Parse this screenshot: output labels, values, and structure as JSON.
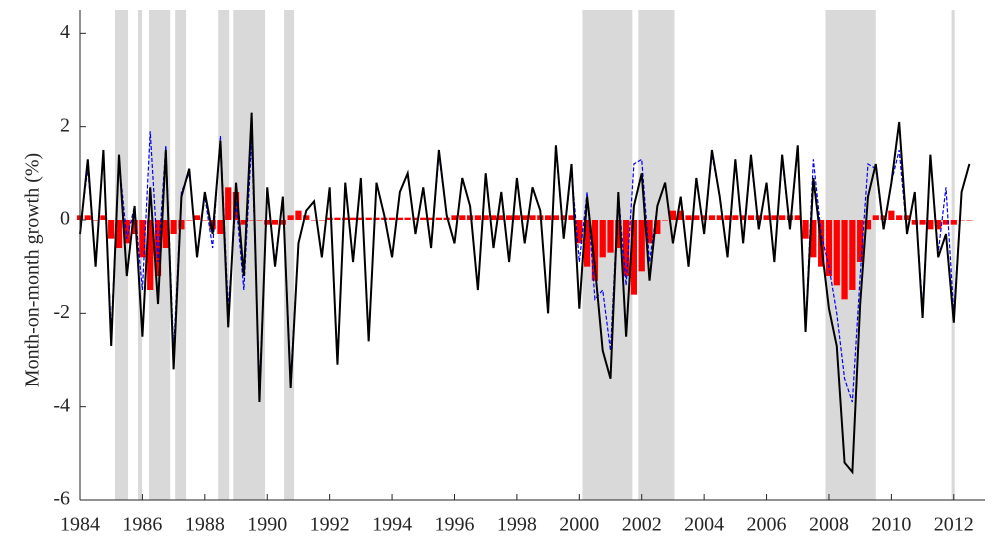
{
  "chart_data": {
    "type": "line",
    "ylabel": "Month-on-month growth (%)",
    "xlim": [
      1984,
      2013
    ],
    "ylim": [
      -6,
      4.5
    ],
    "xticks": [
      1984,
      1986,
      1988,
      1990,
      1992,
      1994,
      1996,
      1998,
      2000,
      2002,
      2004,
      2006,
      2008,
      2010,
      2012
    ],
    "yticks": [
      -6,
      -4,
      -2,
      0,
      2,
      4
    ],
    "shaded_periods": [
      [
        1985.12,
        1985.54
      ],
      [
        1985.86,
        1985.99
      ],
      [
        1986.21,
        1986.89
      ],
      [
        1987.05,
        1987.4
      ],
      [
        1988.43,
        1988.78
      ],
      [
        1988.91,
        1989.93
      ],
      [
        1990.54,
        1990.86
      ],
      [
        2000.1,
        2001.7
      ],
      [
        2001.89,
        2003.05
      ],
      [
        2007.89,
        2009.5
      ],
      [
        2011.93,
        2012.03
      ]
    ],
    "shade_color": "#d9d9d9",
    "x": [
      1984,
      1984.25,
      1984.5,
      1984.75,
      1985,
      1985.25,
      1985.5,
      1985.75,
      1986,
      1986.25,
      1986.5,
      1986.75,
      1987,
      1987.25,
      1987.5,
      1987.75,
      1988,
      1988.25,
      1988.5,
      1988.75,
      1989,
      1989.25,
      1989.5,
      1989.75,
      1990,
      1990.25,
      1990.5,
      1990.75,
      1991,
      1991.25,
      1991.5,
      1991.75,
      1992,
      1992.25,
      1992.5,
      1992.75,
      1993,
      1993.25,
      1993.5,
      1993.75,
      1994,
      1994.25,
      1994.5,
      1994.75,
      1995,
      1995.25,
      1995.5,
      1995.75,
      1996,
      1996.25,
      1996.5,
      1996.75,
      1997,
      1997.25,
      1997.5,
      1997.75,
      1998,
      1998.25,
      1998.5,
      1998.75,
      1999,
      1999.25,
      1999.5,
      1999.75,
      2000,
      2000.25,
      2000.5,
      2000.75,
      2001,
      2001.25,
      2001.5,
      2001.75,
      2002,
      2002.25,
      2002.5,
      2002.75,
      2003,
      2003.25,
      2003.5,
      2003.75,
      2004,
      2004.25,
      2004.5,
      2004.75,
      2005,
      2005.25,
      2005.5,
      2005.75,
      2006,
      2006.25,
      2006.5,
      2006.75,
      2007,
      2007.25,
      2007.5,
      2007.75,
      2008,
      2008.25,
      2008.5,
      2008.75,
      2009,
      2009.25,
      2009.5,
      2009.75,
      2010,
      2010.25,
      2010.5,
      2010.75,
      2011,
      2011.25,
      2011.5,
      2011.75,
      2012,
      2012.25,
      2012.5
    ],
    "bars": {
      "color": "#ff0000",
      "values": [
        0.1,
        0.1,
        0,
        0.1,
        -0.4,
        -0.6,
        -0.5,
        -0.3,
        -0.8,
        -1.5,
        -1.2,
        -0.6,
        -0.3,
        -0.2,
        0,
        0.1,
        0,
        -0.2,
        -0.3,
        0.7,
        0.6,
        -0.1,
        0,
        0,
        -0.1,
        -0.1,
        -0.1,
        0.1,
        0.2,
        0.1,
        0,
        0,
        0.05,
        0.05,
        0.05,
        0.05,
        0.05,
        0.05,
        0.05,
        0.05,
        0.05,
        0.05,
        0.05,
        0.05,
        0.05,
        0.05,
        0.05,
        0.05,
        0.1,
        0.1,
        0.1,
        0.1,
        0.1,
        0.1,
        0.1,
        0.1,
        0.1,
        0.1,
        0.1,
        0.1,
        0.1,
        0.1,
        0.1,
        0.1,
        -0.5,
        -1.0,
        -1.3,
        -0.8,
        -0.7,
        -0.6,
        -1.2,
        -1.6,
        -1.1,
        -0.5,
        -0.3,
        0,
        0.2,
        0.2,
        0.1,
        0.1,
        0.1,
        0.1,
        0.1,
        0.1,
        0.1,
        0.1,
        0.1,
        0.1,
        0.1,
        0.1,
        0.1,
        0.1,
        0.1,
        -0.4,
        -0.8,
        -1.0,
        -1.2,
        -1.4,
        -1.7,
        -1.5,
        -0.9,
        -0.2,
        0.1,
        0.1,
        0.2,
        0.1,
        0.1,
        -0.1,
        -0.1,
        -0.2,
        -0.2,
        -0.1,
        -0.1,
        0,
        0
      ]
    },
    "series": [
      {
        "color": "#0000ff",
        "dash": true,
        "values": [
          -0.2,
          1.1,
          -0.9,
          1.4,
          -2.4,
          1.3,
          -0.4,
          0.3,
          -1.5,
          1.9,
          -0.9,
          1.6,
          -2.8,
          0.6,
          1.0,
          -0.7,
          0.5,
          -0.6,
          1.8,
          -1.9,
          0.4,
          -1.5,
          1.7,
          -3.6,
          0.6,
          -0.9,
          0.5,
          -3.4,
          -0.5,
          0.2,
          0.4,
          -0.8,
          0.7,
          -3.0,
          0.8,
          -0.9,
          0.9,
          -2.5,
          0.8,
          0.1,
          -0.8,
          0.6,
          1.0,
          -0.3,
          0.7,
          -0.6,
          1.4,
          0.1,
          -0.5,
          0.9,
          0.3,
          -1.5,
          1.0,
          -0.6,
          0.6,
          -0.9,
          0.9,
          -0.5,
          0.7,
          0.2,
          -2.0,
          1.5,
          -0.4,
          1.1,
          -0.9,
          0.6,
          -1.7,
          -1.5,
          -2.8,
          0.6,
          -1.4,
          1.2,
          1.3,
          -0.9,
          0.3,
          0.8,
          -0.5,
          0.5,
          -1.0,
          0.9,
          -0.3,
          1.4,
          0.5,
          -0.8,
          1.3,
          -0.5,
          1.3,
          -0.2,
          0.8,
          -0.9,
          1.3,
          -0.2,
          1.5,
          -2.3,
          1.3,
          -0.3,
          -1.0,
          -2.0,
          -3.4,
          -3.9,
          -1.2,
          1.2,
          1.1,
          -0.2,
          0.8,
          1.5,
          -0.3,
          0.6,
          -1.9,
          1.3,
          -0.7,
          0.7,
          -2.0,
          0.6,
          1.2
        ]
      },
      {
        "color": "#000000",
        "dash": false,
        "values": [
          -0.3,
          1.3,
          -1.0,
          1.5,
          -2.7,
          1.4,
          -1.2,
          0.3,
          -2.5,
          0.7,
          -1.8,
          1.5,
          -3.2,
          0.5,
          1.1,
          -0.8,
          0.6,
          -0.3,
          1.7,
          -2.3,
          0.8,
          -1.2,
          2.3,
          -3.9,
          0.7,
          -1.0,
          0.5,
          -3.6,
          -0.5,
          0.2,
          0.4,
          -0.8,
          0.7,
          -3.1,
          0.8,
          -0.9,
          0.9,
          -2.6,
          0.8,
          0.1,
          -0.8,
          0.6,
          1.0,
          -0.3,
          0.7,
          -0.6,
          1.5,
          0.1,
          -0.5,
          0.9,
          0.3,
          -1.5,
          1.0,
          -0.6,
          0.6,
          -0.9,
          0.9,
          -0.5,
          0.7,
          0.2,
          -2.0,
          1.6,
          -0.4,
          1.2,
          -1.9,
          0.5,
          -1.0,
          -2.8,
          -3.4,
          0.6,
          -2.5,
          0.3,
          1.0,
          -1.3,
          0.3,
          0.8,
          -0.5,
          0.5,
          -1.0,
          0.9,
          -0.3,
          1.5,
          0.5,
          -0.8,
          1.3,
          -0.5,
          1.4,
          -0.2,
          0.8,
          -0.9,
          1.4,
          -0.2,
          1.6,
          -2.4,
          0.9,
          -0.5,
          -1.9,
          -2.7,
          -5.2,
          -5.4,
          -1.8,
          0.5,
          1.2,
          -0.2,
          0.8,
          2.1,
          -0.3,
          0.6,
          -2.1,
          1.4,
          -0.8,
          -0.3,
          -2.2,
          0.6,
          1.2
        ]
      }
    ]
  }
}
